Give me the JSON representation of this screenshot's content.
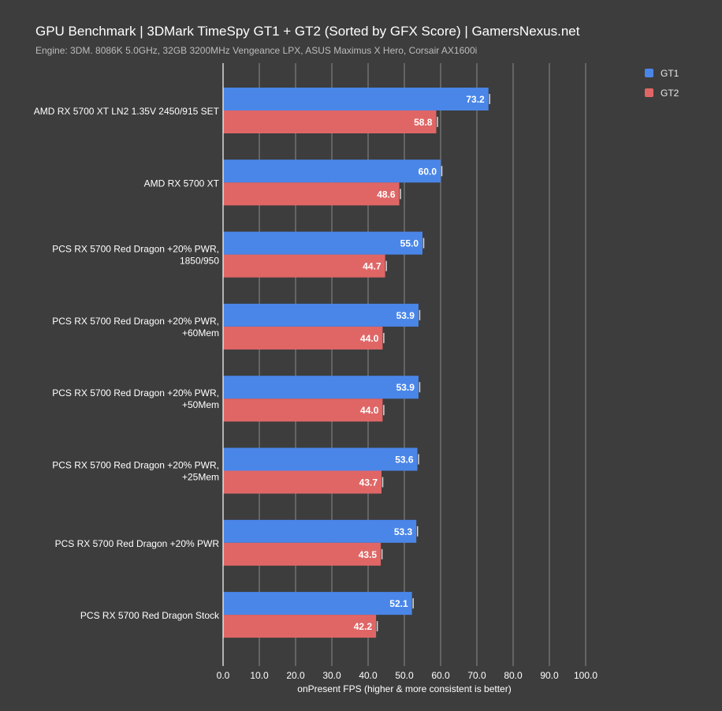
{
  "title": "GPU Benchmark | 3DMark TimeSpy GT1 + GT2 (Sorted by GFX Score) | GamersNexus.net",
  "subtitle": "Engine: 3DM. 8086K 5.0GHz, 32GB 3200MHz Vengeance LPX, ASUS Maximus X Hero, Corsair AX1600i",
  "legend": [
    {
      "name": "GT1",
      "color": "#4a86e8"
    },
    {
      "name": "GT2",
      "color": "#e06666"
    }
  ],
  "chart_data": {
    "type": "bar",
    "orientation": "horizontal",
    "title": "GPU Benchmark | 3DMark TimeSpy GT1 + GT2 (Sorted by GFX Score) | GamersNexus.net",
    "subtitle": "Engine: 3DM. 8086K 5.0GHz, 32GB 3200MHz Vengeance LPX, ASUS Maximus X Hero, Corsair AX1600i",
    "xlabel": "onPresent FPS (higher & more consistent is better)",
    "ylabel": "",
    "xlim": [
      0,
      100
    ],
    "xticks": [
      "0.0",
      "10.0",
      "20.0",
      "30.0",
      "40.0",
      "50.0",
      "60.0",
      "70.0",
      "80.0",
      "90.0",
      "100.0"
    ],
    "categories": [
      [
        "AMD RX 5700 XT LN2 1.35V 2450/915 SET"
      ],
      [
        "AMD RX 5700 XT"
      ],
      [
        "PCS RX 5700 Red Dragon +20% PWR,",
        "1850/950"
      ],
      [
        "PCS RX 5700 Red Dragon +20% PWR,",
        "+60Mem"
      ],
      [
        "PCS RX 5700 Red Dragon +20% PWR,",
        "+50Mem"
      ],
      [
        "PCS RX 5700 Red Dragon +20% PWR,",
        "+25Mem"
      ],
      [
        "PCS RX 5700 Red Dragon +20% PWR"
      ],
      [
        "PCS RX 5700 Red Dragon Stock"
      ]
    ],
    "series": [
      {
        "name": "GT1",
        "color": "#4a86e8",
        "values": [
          73.2,
          60.0,
          55.0,
          53.9,
          53.9,
          53.6,
          53.3,
          52.1
        ]
      },
      {
        "name": "GT2",
        "color": "#e06666",
        "values": [
          58.8,
          48.6,
          44.7,
          44.0,
          44.0,
          43.7,
          43.5,
          42.2
        ]
      }
    ],
    "grid": true,
    "legend_position": "top-right"
  }
}
